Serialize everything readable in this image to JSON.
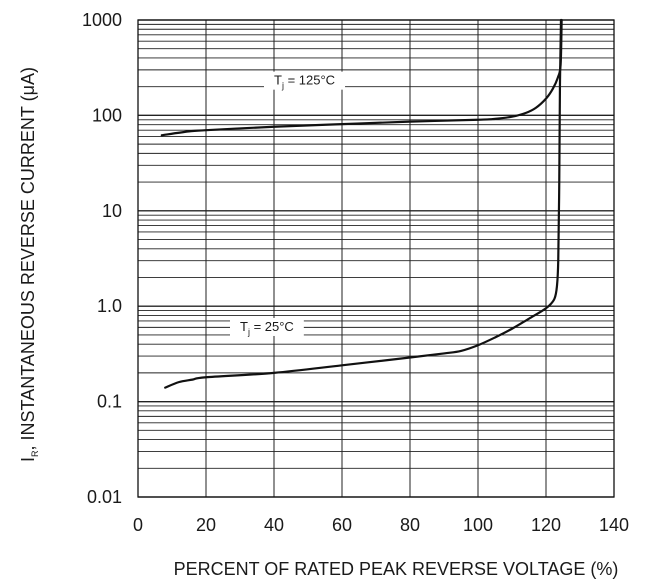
{
  "chart_data": {
    "type": "line",
    "xlabel": "PERCENT OF RATED PEAK REVERSE VOLTAGE (%)",
    "ylabel": {
      "symbol": "I",
      "subscript": "R",
      "rest": ", INSTANTANEOUS REVERSE CURRENT (",
      "unit_greek": "μ",
      "unit_tail": "A)"
    },
    "xlim": [
      0,
      140
    ],
    "ylim": [
      0.01,
      1000
    ],
    "yscale": "log",
    "grid": true,
    "x_tick_labels": [
      "0",
      "20",
      "40",
      "60",
      "80",
      "100",
      "120",
      "140"
    ],
    "y_tick_labels": [
      "0.01",
      "0.1",
      "1.0",
      "10",
      "100",
      "1000"
    ],
    "y_tick_values": [
      0.01,
      0.1,
      1,
      10,
      100,
      1000
    ],
    "series": [
      {
        "name_parts": {
          "symbol": "T",
          "subscript": "j",
          "rest": " = 125°C"
        },
        "label_at": [
          40,
          210
        ],
        "points": [
          [
            7,
            62
          ],
          [
            15,
            68
          ],
          [
            20,
            70
          ],
          [
            40,
            76
          ],
          [
            60,
            81
          ],
          [
            80,
            86
          ],
          [
            100,
            90
          ],
          [
            105,
            92
          ],
          [
            110,
            97
          ],
          [
            114,
            106
          ],
          [
            117,
            120
          ],
          [
            120,
            150
          ],
          [
            122,
            190
          ],
          [
            123.5,
            250
          ],
          [
            124.3,
            340
          ],
          [
            124.6,
            1000
          ]
        ]
      },
      {
        "name_parts": {
          "symbol": "T",
          "subscript": "j",
          "rest": " = 25°C"
        },
        "label_at": [
          30,
          0.55
        ],
        "points": [
          [
            8,
            0.14
          ],
          [
            12,
            0.16
          ],
          [
            16,
            0.17
          ],
          [
            20,
            0.18
          ],
          [
            40,
            0.2
          ],
          [
            60,
            0.24
          ],
          [
            80,
            0.29
          ],
          [
            90,
            0.32
          ],
          [
            95,
            0.34
          ],
          [
            100,
            0.39
          ],
          [
            105,
            0.47
          ],
          [
            110,
            0.58
          ],
          [
            115,
            0.74
          ],
          [
            119,
            0.9
          ],
          [
            121,
            1.02
          ],
          [
            122.5,
            1.2
          ],
          [
            123.2,
            1.6
          ],
          [
            123.6,
            3
          ],
          [
            123.9,
            20
          ],
          [
            124.1,
            200
          ],
          [
            124.4,
            1000
          ]
        ]
      }
    ]
  }
}
